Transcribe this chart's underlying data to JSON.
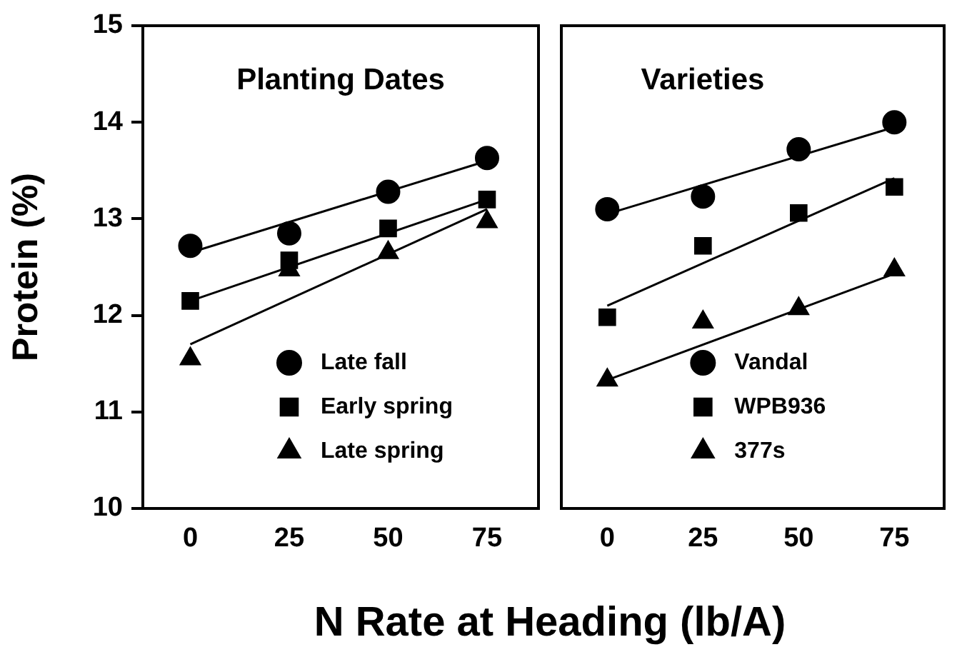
{
  "chart_data": [
    {
      "type": "scatter",
      "title": "Planting Dates",
      "ylabel": "Protein (%)",
      "xlabel": "N Rate at Heading (lb/A)",
      "x": [
        0,
        25,
        50,
        75
      ],
      "xlim": [
        -12,
        88
      ],
      "xticks": [
        0,
        25,
        50,
        75
      ],
      "ylim": [
        10,
        15
      ],
      "yticks": [
        10,
        11,
        12,
        13,
        14,
        15
      ],
      "grid": false,
      "legend": "bottom right",
      "series": [
        {
          "name": "Late fall",
          "color": "#000000",
          "marker": "circle",
          "values": [
            12.72,
            12.85,
            13.28,
            13.63
          ]
        },
        {
          "name": "Early spring",
          "color": "#000000",
          "marker": "square",
          "values": [
            12.15,
            12.57,
            12.9,
            13.2
          ]
        },
        {
          "name": "Late spring",
          "color": "#000000",
          "marker": "triangle",
          "values": [
            11.55,
            12.47,
            12.65,
            12.97
          ]
        },
        {
          "type": "line",
          "color": "#000000",
          "values": [
            12.65,
            null,
            null,
            13.6
          ]
        },
        {
          "type": "line",
          "color": "#000000",
          "values": [
            12.15,
            null,
            null,
            13.2
          ]
        },
        {
          "type": "line",
          "color": "#000000",
          "values": [
            11.7,
            null,
            null,
            13.1
          ]
        }
      ]
    },
    {
      "type": "scatter",
      "title": "Varieties",
      "x": [
        0,
        25,
        50,
        75
      ],
      "xlim": [
        -12,
        88
      ],
      "xticks": [
        0,
        25,
        50,
        75
      ],
      "ylim": [
        10,
        15
      ],
      "yticks": [
        10,
        11,
        12,
        13,
        14,
        15
      ],
      "tick_labels": "x",
      "grid": false,
      "legend": "bottom right",
      "series": [
        {
          "name": "Vandal",
          "color": "#000000",
          "marker": "circle",
          "values": [
            13.1,
            13.23,
            13.72,
            14.0
          ]
        },
        {
          "name": "WPB936",
          "color": "#000000",
          "marker": "square",
          "values": [
            11.98,
            12.72,
            13.06,
            13.33
          ]
        },
        {
          "name": "377s",
          "color": "#000000",
          "marker": "triangle",
          "values": [
            11.33,
            11.93,
            12.07,
            12.47
          ]
        },
        {
          "type": "line",
          "color": "#000000",
          "values": [
            13.05,
            null,
            null,
            13.95
          ]
        },
        {
          "type": "line",
          "color": "#000000",
          "values": [
            12.1,
            null,
            null,
            13.42
          ]
        },
        {
          "type": "line",
          "color": "#000000",
          "values": [
            11.33,
            null,
            null,
            12.43
          ]
        }
      ]
    }
  ]
}
